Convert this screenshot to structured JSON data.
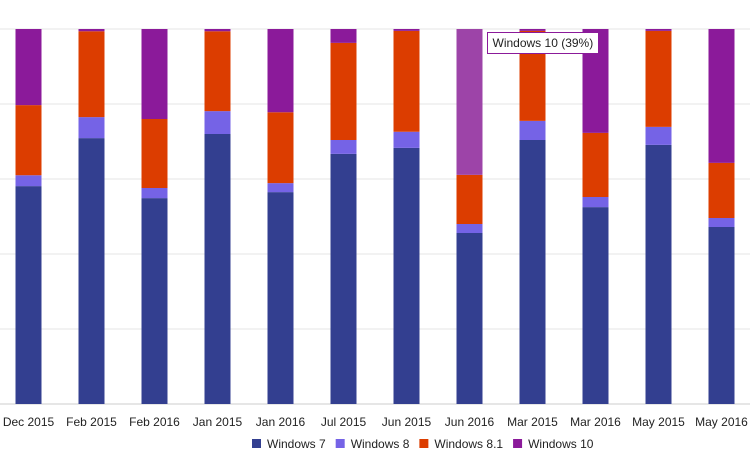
{
  "chart_data": {
    "type": "bar",
    "stacked": "percent",
    "categories": [
      "Dec 2015",
      "Feb 2015",
      "Feb 2016",
      "Jan 2015",
      "Jan 2016",
      "Jul 2015",
      "Jun 2015",
      "Jun 2016",
      "Mar 2015",
      "Mar 2016",
      "May 2015",
      "May 2016"
    ],
    "series": [
      {
        "name": "Windows 7",
        "color": "#333f90",
        "values": [
          58.1,
          70.9,
          54.9,
          72.0,
          56.5,
          66.7,
          68.3,
          45.6,
          70.4,
          52.5,
          69.1,
          47.2
        ]
      },
      {
        "name": "Windows 8",
        "color": "#7563e6",
        "values": [
          2.9,
          5.6,
          2.7,
          6.1,
          2.4,
          3.7,
          4.3,
          2.4,
          5.1,
          2.7,
          4.8,
          2.4
        ]
      },
      {
        "name": "Windows 8.1",
        "color": "#dc3d00",
        "values": [
          18.7,
          22.9,
          18.4,
          21.3,
          18.9,
          25.9,
          26.9,
          13.1,
          24.0,
          17.1,
          25.6,
          14.7
        ]
      },
      {
        "name": "Windows 10",
        "color": "#8b1a9a",
        "values": [
          20.3,
          0.6,
          24.0,
          0.6,
          22.2,
          3.7,
          0.5,
          38.9,
          0.5,
          27.7,
          0.5,
          35.7
        ]
      }
    ],
    "ylim": [
      0,
      100
    ],
    "grid": true,
    "legend": "bottom",
    "tooltip": {
      "text": "Windows 10 (39%)",
      "category": "Jun 2016",
      "series": "Windows 10",
      "hover_color": "#9d44a8"
    }
  }
}
